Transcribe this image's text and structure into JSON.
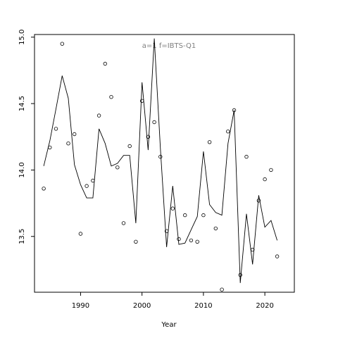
{
  "chart_data": {
    "type": "line",
    "annotation": "a=1   f=IBTS-Q1",
    "xlabel": "Year",
    "ylabel": "",
    "xlim": [
      1982.5,
      2024.8
    ],
    "ylim": [
      13.08,
      15.02
    ],
    "xticks": [
      1990,
      2000,
      2010,
      2020
    ],
    "yticks": [
      13.5,
      14.0,
      14.5,
      15.0
    ],
    "xtick_labels": [
      "1990",
      "2000",
      "2010",
      "2020"
    ],
    "ytick_labels": [
      "13.5",
      "14.0",
      "14.5",
      "15.0"
    ],
    "series": [
      {
        "kind": "line",
        "x": [
          1984,
          1985,
          1986,
          1987,
          1988,
          1989,
          1990,
          1991,
          1992,
          1993,
          1994,
          1995,
          1996,
          1997,
          1998,
          1999,
          2000,
          2001,
          2002,
          2003,
          2004,
          2005,
          2006,
          2007,
          2008,
          2009,
          2010,
          2011,
          2012,
          2013,
          2014,
          2015,
          2016,
          2017,
          2018,
          2019,
          2020,
          2021,
          2022
        ],
        "y": [
          14.03,
          14.22,
          14.46,
          14.71,
          14.54,
          14.04,
          13.89,
          13.79,
          13.79,
          14.31,
          14.2,
          14.03,
          14.05,
          14.11,
          14.11,
          13.6,
          14.66,
          14.15,
          14.99,
          14.16,
          13.42,
          13.88,
          13.44,
          13.45,
          13.55,
          13.65,
          14.14,
          13.74,
          13.68,
          13.66,
          14.2,
          14.45,
          13.15,
          13.67,
          13.29,
          13.81,
          13.57,
          13.62,
          13.47
        ]
      },
      {
        "kind": "points",
        "x": [
          1984,
          1985,
          1986,
          1987,
          1988,
          1989,
          1990,
          1991,
          1992,
          1993,
          1994,
          1995,
          1996,
          1997,
          1998,
          1999,
          2000,
          2001,
          2002,
          2003,
          2004,
          2005,
          2006,
          2007,
          2008,
          2009,
          2010,
          2011,
          2012,
          2013,
          2014,
          2015,
          2016,
          2017,
          2018,
          2019,
          2020,
          2021,
          2022
        ],
        "y": [
          13.86,
          14.17,
          14.31,
          14.95,
          14.2,
          14.27,
          13.52,
          13.88,
          13.92,
          14.41,
          14.8,
          14.55,
          14.02,
          13.6,
          14.18,
          13.46,
          14.52,
          14.25,
          14.36,
          14.1,
          13.54,
          13.71,
          13.48,
          13.66,
          13.47,
          13.46,
          13.66,
          14.21,
          13.56,
          13.1,
          14.29,
          14.45,
          13.21,
          14.1,
          13.4,
          13.77,
          13.93,
          14.0,
          13.35
        ]
      }
    ]
  }
}
